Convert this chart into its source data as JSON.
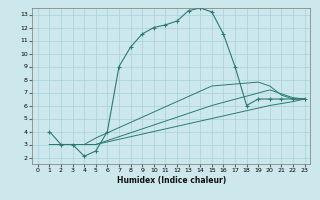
{
  "xlabel": "Humidex (Indice chaleur)",
  "background_color": "#cde8ec",
  "grid_color": "#a8d0d8",
  "line_color": "#2a7a72",
  "xlim": [
    -0.5,
    23.5
  ],
  "ylim": [
    1.5,
    13.5
  ],
  "xticks": [
    0,
    1,
    2,
    3,
    4,
    5,
    6,
    7,
    8,
    9,
    10,
    11,
    12,
    13,
    14,
    15,
    16,
    17,
    18,
    19,
    20,
    21,
    22,
    23
  ],
  "yticks": [
    2,
    3,
    4,
    5,
    6,
    7,
    8,
    9,
    10,
    11,
    12,
    13
  ],
  "line1_x": [
    1,
    2,
    3,
    4,
    5,
    6,
    7,
    8,
    9,
    10,
    11,
    12,
    13,
    14,
    15,
    16,
    17,
    18,
    19,
    20,
    21,
    22,
    23
  ],
  "line1_y": [
    4,
    3,
    3,
    2.1,
    2.5,
    4.0,
    9.0,
    10.5,
    11.5,
    12.0,
    12.2,
    12.5,
    13.3,
    13.5,
    13.2,
    11.5,
    9.0,
    6.0,
    6.5,
    6.5,
    6.5,
    6.5,
    6.5
  ],
  "line2_x": [
    1,
    2,
    3,
    4,
    5,
    10,
    15,
    20,
    22,
    23
  ],
  "line2_y": [
    3,
    3,
    3,
    3,
    3,
    4.0,
    5.0,
    6.0,
    6.3,
    6.5
  ],
  "line3_x": [
    1,
    2,
    3,
    4,
    5,
    10,
    15,
    20,
    22,
    23
  ],
  "line3_y": [
    3,
    3,
    3,
    3,
    3,
    4.5,
    6.0,
    7.2,
    6.6,
    6.5
  ],
  "line4_x": [
    1,
    2,
    3,
    4,
    5,
    10,
    15,
    19,
    20,
    21,
    22,
    23
  ],
  "line4_y": [
    3,
    3,
    3,
    3,
    3.5,
    5.5,
    7.5,
    7.8,
    7.5,
    6.8,
    6.5,
    6.5
  ]
}
